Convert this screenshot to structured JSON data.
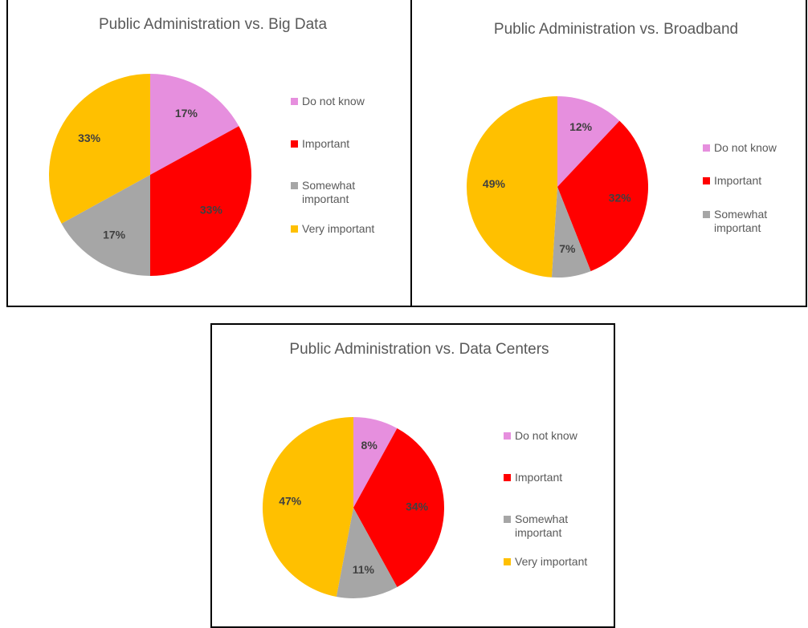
{
  "chart_data": [
    {
      "type": "pie",
      "title": "Public Administration vs. Big Data",
      "categories": [
        "Do not know",
        "Important",
        "Somewhat important",
        "Very important"
      ],
      "values": [
        17,
        33,
        17,
        33
      ],
      "value_labels": [
        "17%",
        "33%",
        "17%",
        "33%"
      ],
      "colors": [
        "#e68fde",
        "#ff0000",
        "#a6a6a6",
        "#ffc000"
      ]
    },
    {
      "type": "pie",
      "title": "Public Administration vs. Broadband",
      "categories": [
        "Do not know",
        "Important",
        "Somewhat important",
        null
      ],
      "values": [
        12,
        32,
        7,
        49
      ],
      "value_labels": [
        "12%",
        "32%",
        "7%",
        "49%"
      ],
      "colors": [
        "#e68fde",
        "#ff0000",
        "#a6a6a6",
        "#ffc000"
      ]
    },
    {
      "type": "pie",
      "title": "Public Administration vs. Data Centers",
      "categories": [
        "Do not know",
        "Important",
        "Somewhat important",
        "Very important"
      ],
      "values": [
        8,
        34,
        11,
        47
      ],
      "value_labels": [
        "8%",
        "34%",
        "11%",
        "47%"
      ],
      "colors": [
        "#e68fde",
        "#ff0000",
        "#a6a6a6",
        "#ffc000"
      ]
    }
  ]
}
